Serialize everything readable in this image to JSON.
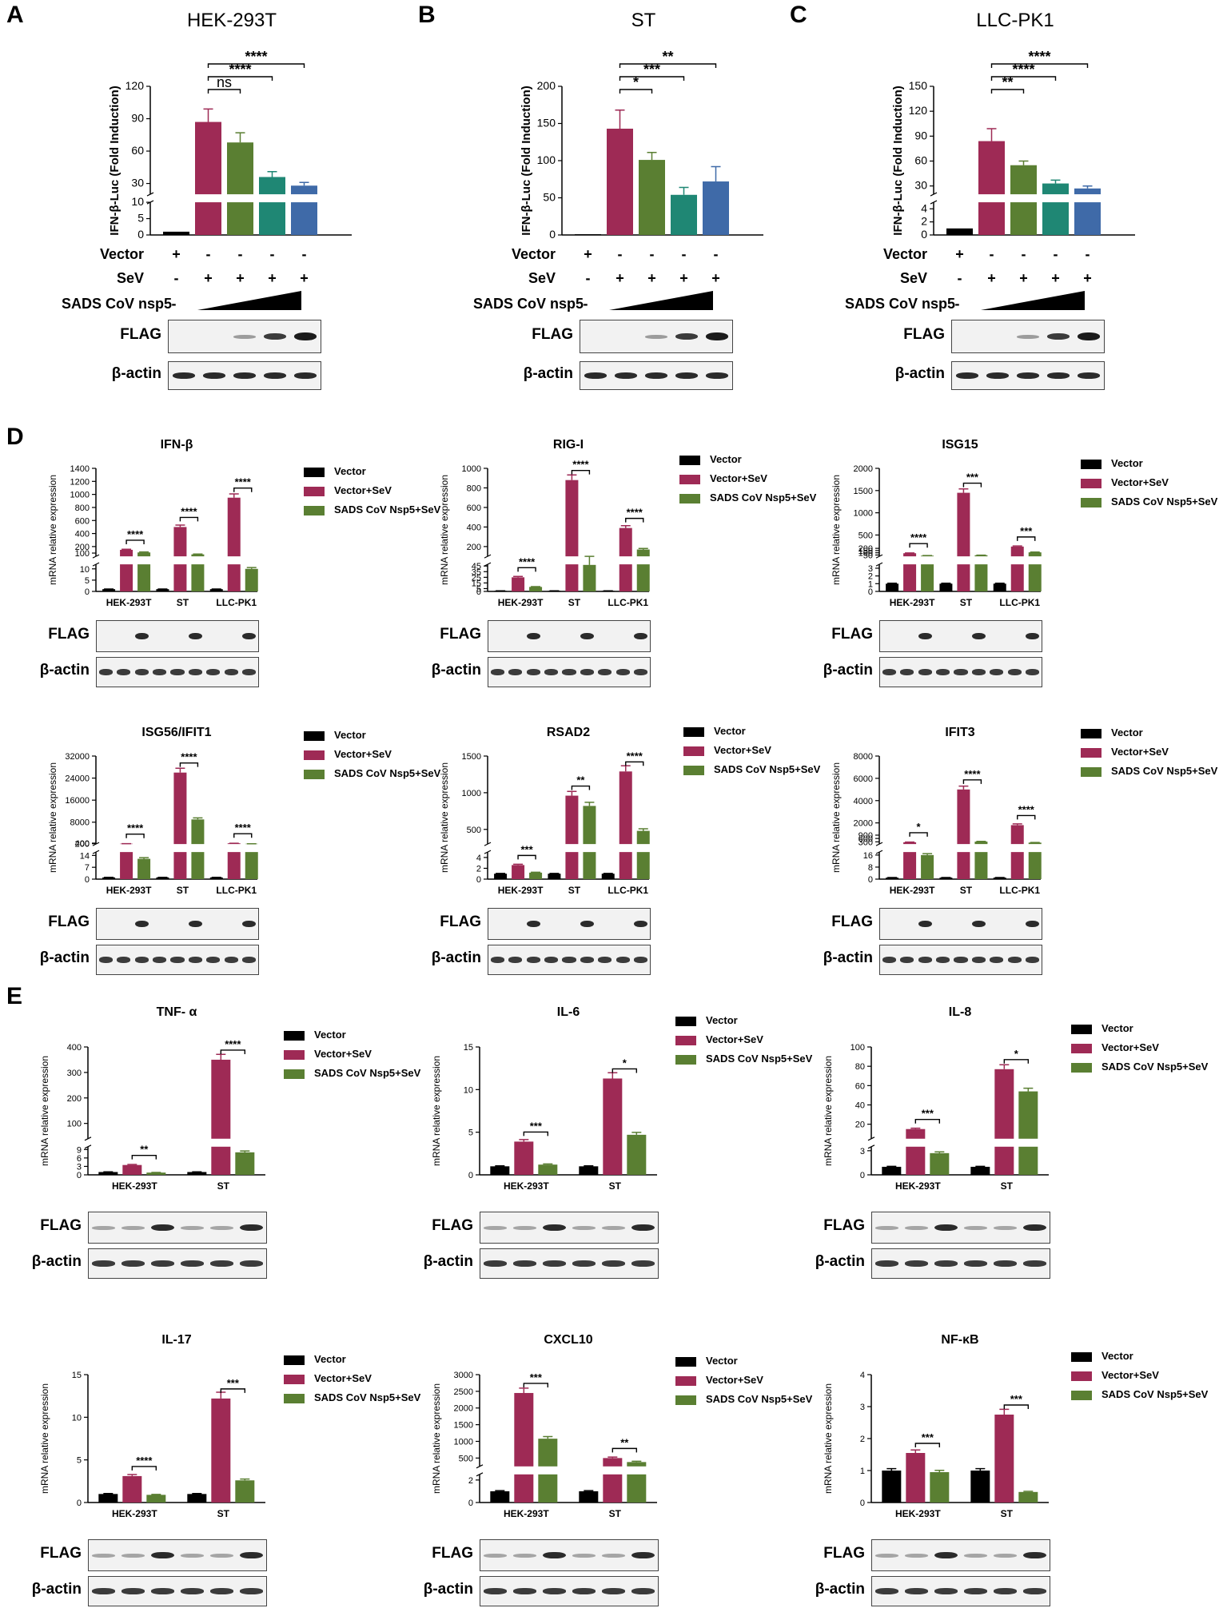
{
  "colors": {
    "vector": "#000000",
    "vector_sev": "#9e2a55",
    "nsp5_sev": "#5a7f32",
    "nsp5_2": "#1f8774",
    "nsp5_3": "#3f6aa8",
    "band": "#1b1b1b",
    "blot_bg": "#f2f2f2"
  },
  "blot_labels": {
    "flag": "FLAG",
    "actin": "β-actin"
  },
  "treatments": {
    "vector_label": "Vector",
    "sev_label": "SeV",
    "nsp5_label": "SADS CoV nsp5",
    "vector_marks": [
      "+",
      "-",
      "-",
      "-",
      "-"
    ],
    "sev_marks": [
      "-",
      "+",
      "+",
      "+",
      "+"
    ]
  },
  "panels_luc": [
    {
      "letter": "A",
      "title": "HEK-293T",
      "ylabel": "IFN-β-Luc  (Fold Induction)",
      "lower_ticks": [
        "0",
        "5",
        "10"
      ],
      "upper_ticks": [
        "30",
        "60",
        "90",
        "120"
      ],
      "lower_max": 10,
      "upper_min": 20,
      "upper_max": 120,
      "values": [
        1,
        87,
        68,
        36,
        28
      ],
      "errors": [
        0,
        12,
        9,
        5,
        3
      ],
      "sig": [
        {
          "a": 1,
          "b": 2,
          "label": "ns"
        },
        {
          "a": 1,
          "b": 3,
          "label": "****"
        },
        {
          "a": 1,
          "b": 4,
          "label": "****"
        }
      ]
    },
    {
      "letter": "B",
      "title": "ST",
      "ylabel": "IFN-β-Luc  (Fold Induction)",
      "lower_ticks": [],
      "upper_ticks": [
        "0",
        "50",
        "100",
        "150",
        "200"
      ],
      "lower_max": 0,
      "upper_min": 0,
      "upper_max": 200,
      "values": [
        1,
        143,
        101,
        54,
        72
      ],
      "errors": [
        0,
        25,
        10,
        10,
        20
      ],
      "sig": [
        {
          "a": 1,
          "b": 2,
          "label": "*"
        },
        {
          "a": 1,
          "b": 3,
          "label": "***"
        },
        {
          "a": 1,
          "b": 4,
          "label": "**"
        }
      ]
    },
    {
      "letter": "C",
      "title": "LLC-PK1",
      "ylabel": "IFN-β-Luc  (Fold Induction)",
      "lower_ticks": [
        "0",
        "2",
        "4"
      ],
      "upper_ticks": [
        "30",
        "60",
        "90",
        "120",
        "150"
      ],
      "lower_max": 5,
      "upper_min": 20,
      "upper_max": 150,
      "values": [
        1,
        84,
        55,
        33,
        27
      ],
      "errors": [
        0,
        15,
        5,
        4,
        3
      ],
      "sig": [
        {
          "a": 1,
          "b": 2,
          "label": "**"
        },
        {
          "a": 1,
          "b": 3,
          "label": "****"
        },
        {
          "a": 1,
          "b": 4,
          "label": "****"
        }
      ]
    }
  ],
  "section_labels": {
    "d": "D",
    "e": "E"
  },
  "legend": {
    "vector": "Vector",
    "vector_sev": "Vector+SeV",
    "nsp5_sev": "SADS CoV Nsp5+SeV"
  },
  "ylabel_mrna": "mRNA relative expression",
  "chart_data": [
    {
      "type": "bar",
      "title": "IFN-β",
      "categories": [
        "HEK-293T",
        "ST",
        "LLC-PK1"
      ],
      "series": [
        {
          "name": "Vector",
          "values": [
            1,
            1,
            1
          ]
        },
        {
          "name": "Vector+SeV",
          "values": [
            150,
            500,
            950
          ]
        },
        {
          "name": "SADS CoV Nsp5+SeV",
          "values": [
            110,
            80,
            10
          ]
        }
      ],
      "lower_ticks": [
        "0",
        "5",
        "10"
      ],
      "upper_ticks": [
        "100",
        "200",
        "400",
        "600",
        "800",
        "1000",
        "1200",
        "1400"
      ],
      "lower_max": 12,
      "upper_min": 50,
      "upper_max": 1400,
      "sig": [
        {
          "cat": 0,
          "label": "****"
        },
        {
          "cat": 1,
          "label": "****"
        },
        {
          "cat": 2,
          "label": "****"
        }
      ]
    },
    {
      "type": "bar",
      "title": "RIG-I",
      "categories": [
        "HEK-293T",
        "ST",
        "LLC-PK1"
      ],
      "series": [
        {
          "name": "Vector",
          "values": [
            1,
            1,
            1
          ]
        },
        {
          "name": "Vector+SeV",
          "values": [
            25,
            880,
            390
          ]
        },
        {
          "name": "SADS CoV Nsp5+SeV",
          "values": [
            8,
            47,
            170
          ]
        }
      ],
      "lower_ticks": [
        "0",
        "5",
        "15",
        "25",
        "35",
        "45"
      ],
      "upper_ticks": [
        "200",
        "400",
        "600",
        "800",
        "1000"
      ],
      "lower_max": 48,
      "upper_min": 100,
      "upper_max": 1000,
      "sig": [
        {
          "cat": 0,
          "label": "****"
        },
        {
          "cat": 1,
          "label": "****"
        },
        {
          "cat": 2,
          "label": "****"
        }
      ]
    },
    {
      "type": "bar",
      "title": "ISG15",
      "categories": [
        "HEK-293T",
        "ST",
        "LLC-PK1"
      ],
      "series": [
        {
          "name": "Vector",
          "values": [
            1,
            1,
            1
          ]
        },
        {
          "name": "Vector+SeV",
          "values": [
            90,
            1450,
            240
          ]
        },
        {
          "name": "SADS CoV Nsp5+SeV",
          "values": [
            35,
            45,
            110
          ]
        }
      ],
      "lower_ticks": [
        "0",
        "1",
        "2",
        "3"
      ],
      "upper_ticks": [
        "50",
        "100",
        "150",
        "200",
        "500",
        "1000",
        "1500",
        "2000"
      ],
      "lower_max": 3.5,
      "upper_min": 20,
      "upper_max": 2000,
      "sig": [
        {
          "cat": 0,
          "label": "****"
        },
        {
          "cat": 1,
          "label": "***"
        },
        {
          "cat": 2,
          "label": "***"
        }
      ]
    },
    {
      "type": "bar",
      "title": "ISG56/IFIT1",
      "categories": [
        "HEK-293T",
        "ST",
        "LLC-PK1"
      ],
      "series": [
        {
          "name": "Vector",
          "values": [
            1,
            1,
            1
          ]
        },
        {
          "name": "Vector+SeV",
          "values": [
            180,
            26000,
            330
          ]
        },
        {
          "name": "SADS CoV Nsp5+SeV",
          "values": [
            12,
            9000,
            150
          ]
        }
      ],
      "lower_ticks": [
        "0",
        "7",
        "14"
      ],
      "upper_ticks": [
        "200",
        "400",
        "8000",
        "16000",
        "24000",
        "32000"
      ],
      "lower_max": 16,
      "upper_min": 60,
      "upper_max": 32000,
      "sig": [
        {
          "cat": 0,
          "label": "****"
        },
        {
          "cat": 1,
          "label": "****"
        },
        {
          "cat": 2,
          "label": "****"
        }
      ]
    },
    {
      "type": "bar",
      "title": "RSAD2",
      "categories": [
        "HEK-293T",
        "ST",
        "LLC-PK1"
      ],
      "series": [
        {
          "name": "Vector",
          "values": [
            1,
            1,
            1
          ]
        },
        {
          "name": "Vector+SeV",
          "values": [
            2.6,
            960,
            1290
          ]
        },
        {
          "name": "SADS CoV Nsp5+SeV",
          "values": [
            1.2,
            820,
            480
          ]
        }
      ],
      "lower_ticks": [
        "0",
        "2",
        "4"
      ],
      "upper_ticks": [
        "500",
        "1000",
        "1500"
      ],
      "lower_max": 5,
      "upper_min": 300,
      "upper_max": 1500,
      "sig": [
        {
          "cat": 0,
          "label": "***"
        },
        {
          "cat": 1,
          "label": "**"
        },
        {
          "cat": 2,
          "label": "****"
        }
      ]
    },
    {
      "type": "bar",
      "title": "IFIT3",
      "categories": [
        "HEK-293T",
        "ST",
        "LLC-PK1"
      ],
      "series": [
        {
          "name": "Vector",
          "values": [
            1,
            1,
            1
          ]
        },
        {
          "name": "Vector+SeV",
          "values": [
            260,
            5000,
            1800
          ]
        },
        {
          "name": "SADS CoV Nsp5+SeV",
          "values": [
            16,
            320,
            230
          ]
        }
      ],
      "lower_ticks": [
        "0",
        "8",
        "16"
      ],
      "upper_ticks": [
        "300",
        "600",
        "900",
        "2000",
        "4000",
        "6000",
        "8000"
      ],
      "lower_max": 18,
      "upper_min": 100,
      "upper_max": 8000,
      "sig": [
        {
          "cat": 0,
          "label": "*"
        },
        {
          "cat": 1,
          "label": "****"
        },
        {
          "cat": 2,
          "label": "****"
        }
      ]
    },
    {
      "type": "bar",
      "title": "TNF- α",
      "categories": [
        "HEK-293T",
        "ST"
      ],
      "series": [
        {
          "name": "Vector",
          "values": [
            1,
            1
          ]
        },
        {
          "name": "Vector+SeV",
          "values": [
            3.5,
            350
          ]
        },
        {
          "name": "SADS CoV Nsp5+SeV",
          "values": [
            0.8,
            8
          ]
        }
      ],
      "lower_ticks": [
        "0",
        "3",
        "6",
        "9"
      ],
      "upper_ticks": [
        "100",
        "200",
        "300",
        "400"
      ],
      "lower_max": 10,
      "upper_min": 40,
      "upper_max": 400,
      "sig": [
        {
          "cat": 0,
          "label": "**"
        },
        {
          "cat": 1,
          "label": "****"
        }
      ]
    },
    {
      "type": "bar",
      "title": "IL-6",
      "categories": [
        "HEK-293T",
        "ST"
      ],
      "series": [
        {
          "name": "Vector",
          "values": [
            1,
            1
          ]
        },
        {
          "name": "Vector+SeV",
          "values": [
            3.9,
            11.3
          ]
        },
        {
          "name": "SADS CoV Nsp5+SeV",
          "values": [
            1.2,
            4.7
          ]
        }
      ],
      "lower_ticks": [],
      "upper_ticks": [
        "0",
        "5",
        "10",
        "15"
      ],
      "lower_max": 0,
      "upper_min": 0,
      "upper_max": 15,
      "sig": [
        {
          "cat": 0,
          "label": "***"
        },
        {
          "cat": 1,
          "label": "*"
        }
      ]
    },
    {
      "type": "bar",
      "title": "IL-8",
      "categories": [
        "HEK-293T",
        "ST"
      ],
      "series": [
        {
          "name": "Vector",
          "values": [
            1,
            1
          ]
        },
        {
          "name": "Vector+SeV",
          "values": [
            15,
            77
          ]
        },
        {
          "name": "SADS CoV Nsp5+SeV",
          "values": [
            2.7,
            54
          ]
        }
      ],
      "lower_ticks": [
        "0",
        "3"
      ],
      "upper_ticks": [
        "20",
        "40",
        "60",
        "80",
        "100"
      ],
      "lower_max": 3.5,
      "upper_min": 5,
      "upper_max": 100,
      "sig": [
        {
          "cat": 0,
          "label": "***"
        },
        {
          "cat": 1,
          "label": "*"
        }
      ]
    },
    {
      "type": "bar",
      "title": "IL-17",
      "categories": [
        "HEK-293T",
        "ST"
      ],
      "series": [
        {
          "name": "Vector",
          "values": [
            1,
            1
          ]
        },
        {
          "name": "Vector+SeV",
          "values": [
            3.1,
            12.2
          ]
        },
        {
          "name": "SADS CoV Nsp5+SeV",
          "values": [
            0.9,
            2.6
          ]
        }
      ],
      "lower_ticks": [],
      "upper_ticks": [
        "0",
        "5",
        "10",
        "15"
      ],
      "lower_max": 0,
      "upper_min": 0,
      "upper_max": 15,
      "sig": [
        {
          "cat": 0,
          "label": "****"
        },
        {
          "cat": 1,
          "label": "***"
        }
      ]
    },
    {
      "type": "bar",
      "title": "CXCL10",
      "categories": [
        "HEK-293T",
        "ST"
      ],
      "series": [
        {
          "name": "Vector",
          "values": [
            1,
            1
          ]
        },
        {
          "name": "Vector+SeV",
          "values": [
            2450,
            500
          ]
        },
        {
          "name": "SADS CoV Nsp5+SeV",
          "values": [
            1080,
            380
          ]
        }
      ],
      "lower_ticks": [
        "0",
        "2"
      ],
      "upper_ticks": [
        "500",
        "1000",
        "1500",
        "2000",
        "2500",
        "3000"
      ],
      "lower_max": 2.5,
      "upper_min": 250,
      "upper_max": 3000,
      "sig": [
        {
          "cat": 0,
          "label": "***"
        },
        {
          "cat": 1,
          "label": "**"
        }
      ]
    },
    {
      "type": "bar",
      "title": "NF-κB",
      "categories": [
        "HEK-293T",
        "ST"
      ],
      "series": [
        {
          "name": "Vector",
          "values": [
            1,
            1
          ]
        },
        {
          "name": "Vector+SeV",
          "values": [
            1.55,
            2.75
          ]
        },
        {
          "name": "SADS CoV Nsp5+SeV",
          "values": [
            0.95,
            0.33
          ]
        }
      ],
      "lower_ticks": [],
      "upper_ticks": [
        "0",
        "1",
        "2",
        "3",
        "4"
      ],
      "lower_max": 0,
      "upper_min": 0,
      "upper_max": 4,
      "sig": [
        {
          "cat": 0,
          "label": "***"
        },
        {
          "cat": 1,
          "label": "***"
        }
      ]
    }
  ]
}
